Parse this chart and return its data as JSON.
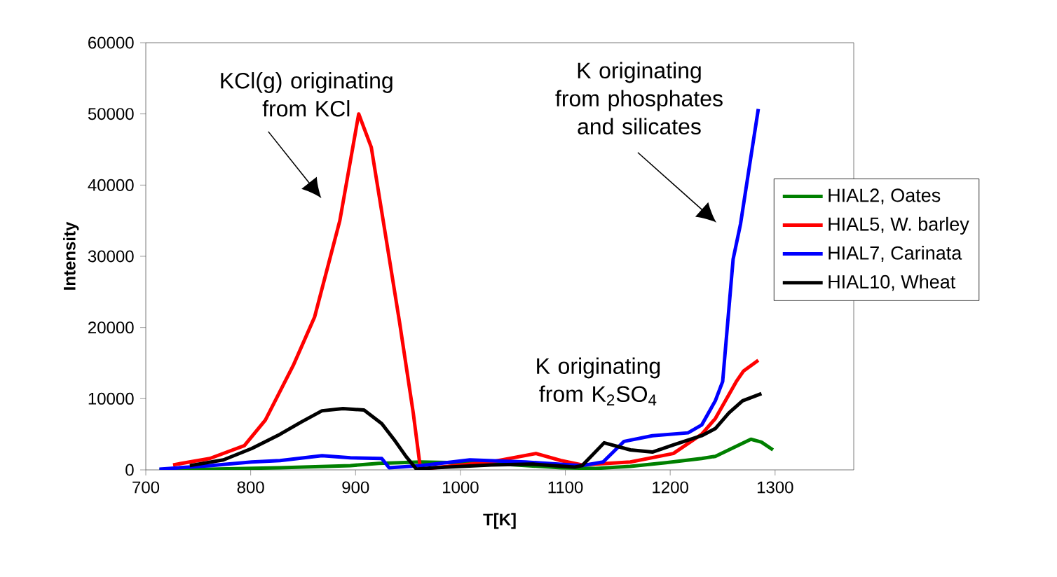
{
  "chart_data": {
    "type": "line",
    "xlabel": "T[K]",
    "ylabel": "Intensity",
    "xlim": [
      700,
      1375
    ],
    "ylim": [
      0,
      60000
    ],
    "xticks": [
      700,
      800,
      900,
      1000,
      1100,
      1200,
      1300
    ],
    "yticks": [
      0,
      10000,
      20000,
      30000,
      40000,
      50000,
      60000
    ],
    "grid": false,
    "legend": "right",
    "line_style": "solid",
    "marker": "none",
    "series": [
      {
        "name": "HIAL2, Oates",
        "color": "#008000",
        "x": [
          713,
          761,
          828,
          895,
          922,
          962,
          1029,
          1096,
          1129,
          1162,
          1196,
          1230,
          1243,
          1277,
          1287,
          1298
        ],
        "values": [
          0,
          100,
          300,
          600,
          900,
          1100,
          900,
          300,
          200,
          500,
          1000,
          1600,
          1900,
          4300,
          3900,
          2800
        ]
      },
      {
        "name": "HIAL5, W. barley",
        "color": "#ff0000",
        "x": [
          726,
          761,
          794,
          814,
          841,
          861,
          885,
          903,
          915,
          928,
          942,
          955,
          962,
          975,
          1029,
          1072,
          1096,
          1116,
          1162,
          1203,
          1230,
          1243,
          1263,
          1270,
          1284
        ],
        "values": [
          700,
          1600,
          3400,
          7000,
          14800,
          21500,
          35000,
          50000,
          45300,
          33500,
          20700,
          8000,
          0,
          300,
          1100,
          2300,
          1300,
          700,
          1100,
          2300,
          5000,
          7200,
          12400,
          13900,
          15400
        ]
      },
      {
        "name": "HIAL7, Carinata",
        "color": "#0000ff",
        "x": [
          713,
          761,
          801,
          828,
          868,
          895,
          925,
          932,
          962,
          1009,
          1062,
          1116,
          1136,
          1156,
          1183,
          1217,
          1230,
          1243,
          1250,
          1260,
          1267,
          1284
        ],
        "values": [
          100,
          600,
          1100,
          1300,
          2000,
          1700,
          1600,
          300,
          600,
          1400,
          1100,
          600,
          1100,
          4000,
          4800,
          5200,
          6300,
          9700,
          12400,
          29600,
          34500,
          50700
        ]
      },
      {
        "name": "HIAL10, Wheat",
        "color": "#000000",
        "x": [
          742,
          774,
          801,
          828,
          848,
          868,
          888,
          908,
          925,
          938,
          948,
          958,
          975,
          1029,
          1069,
          1109,
          1116,
          1137,
          1162,
          1183,
          1203,
          1230,
          1243,
          1256,
          1269,
          1287
        ],
        "values": [
          600,
          1400,
          3000,
          5000,
          6700,
          8300,
          8600,
          8400,
          6500,
          4000,
          1900,
          100,
          300,
          700,
          800,
          400,
          600,
          3800,
          2800,
          2500,
          3500,
          4800,
          5800,
          8000,
          9700,
          10700
        ]
      }
    ],
    "annotations": [
      "KCl(g) originating from KCl",
      "K originating from phosphates and silicates",
      "K originating from K$_{2}$SO$_{4}$"
    ]
  }
}
